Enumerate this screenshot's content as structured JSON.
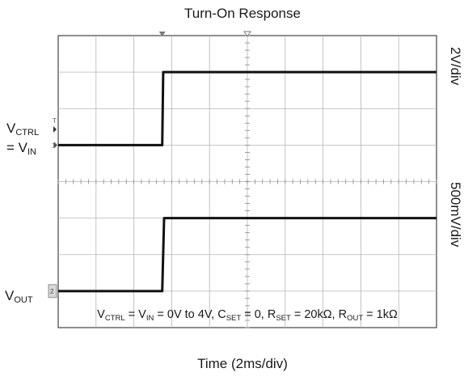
{
  "title": "Turn-On Response",
  "xlabel": "Time (2ms/div)",
  "labels": {
    "ch1_line1_main": "V",
    "ch1_line1_sub": "CTRL",
    "ch1_line2_prefix": "= V",
    "ch1_line2_sub": "IN",
    "ch2_main": "V",
    "ch2_sub": "OUT",
    "ch1_scale": "2V/div",
    "ch2_scale": "500mV/div",
    "ch1_marker": "1",
    "ch2_marker": "2",
    "trigger_marker": "T"
  },
  "conditions": {
    "vctrl": "V",
    "vctrl_sub": "CTRL",
    "eq1": " = V",
    "vin_sub": "IN",
    "range": " = 0V to 4V, C",
    "cset_sub": "SET",
    "cset": " = 0, R",
    "rset_sub": "SET",
    "rset": " = 20kΩ, R",
    "rout_sub": "OUT",
    "rout": " = 1kΩ"
  },
  "chart_data": {
    "type": "line",
    "title": "Turn-On Response",
    "xlabel": "Time (2ms/div)",
    "x_unit": "ms",
    "xlim": [
      0,
      20
    ],
    "divisions": {
      "x": 10,
      "y": 8
    },
    "grid": true,
    "series": [
      {
        "name": "VCTRL = VIN",
        "scale": "2V/div",
        "unit": "V",
        "x": [
          0,
          5.5,
          5.55,
          20
        ],
        "y": [
          0,
          0,
          4,
          4
        ]
      },
      {
        "name": "VOUT",
        "scale": "500mV/div",
        "unit": "V",
        "x": [
          0,
          5.5,
          5.6,
          20
        ],
        "y": [
          0,
          0,
          1.0,
          1.0
        ]
      }
    ],
    "annotations": [
      "2V/div",
      "500mV/div",
      "Time (2ms/div)"
    ]
  }
}
